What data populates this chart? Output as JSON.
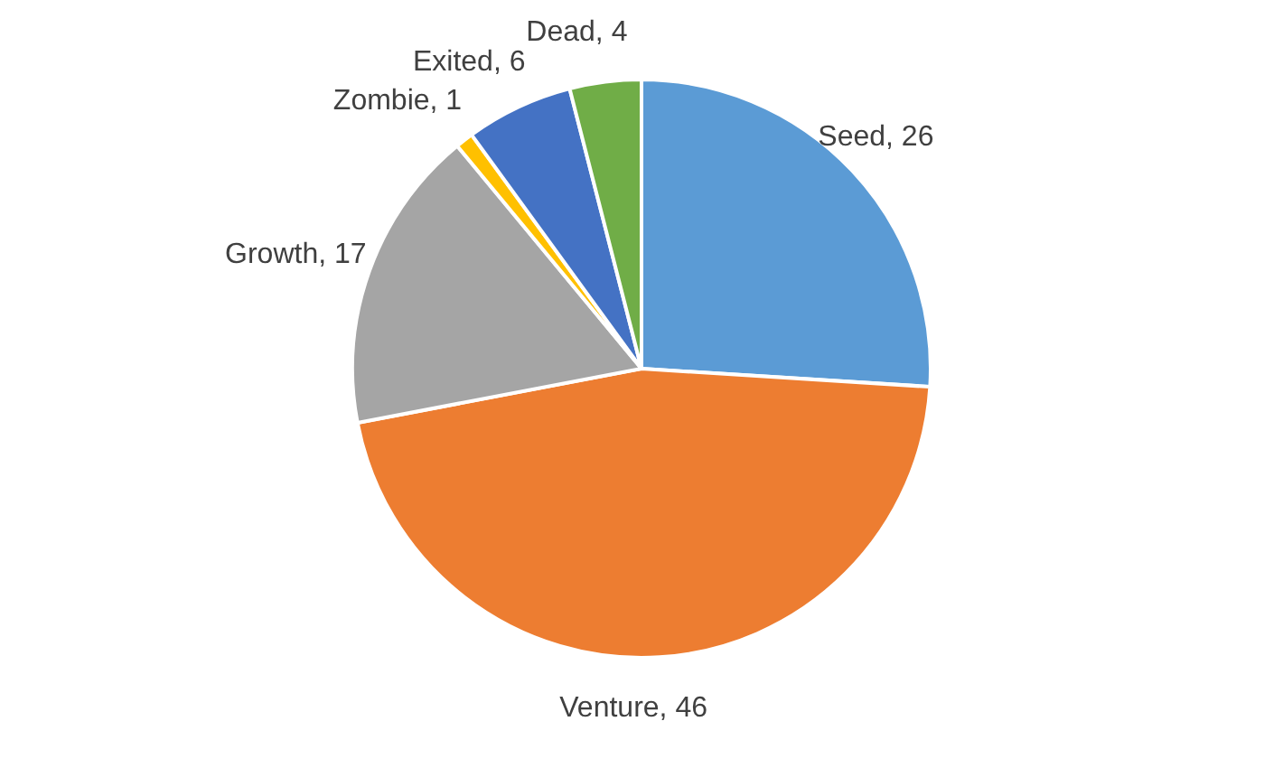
{
  "chart_data": {
    "type": "pie",
    "categories": [
      "Seed",
      "Venture",
      "Growth",
      "Zombie",
      "Exited",
      "Dead"
    ],
    "values": [
      26,
      46,
      17,
      1,
      6,
      4
    ],
    "value_labels": [
      ", 26",
      ", 46",
      ", 17",
      ", 1",
      ", 6",
      ", 4"
    ],
    "colors": [
      "#5b9bd5",
      "#ed7d31",
      "#a5a5a5",
      "#ffc000",
      "#4472c4",
      "#70ad47"
    ]
  }
}
